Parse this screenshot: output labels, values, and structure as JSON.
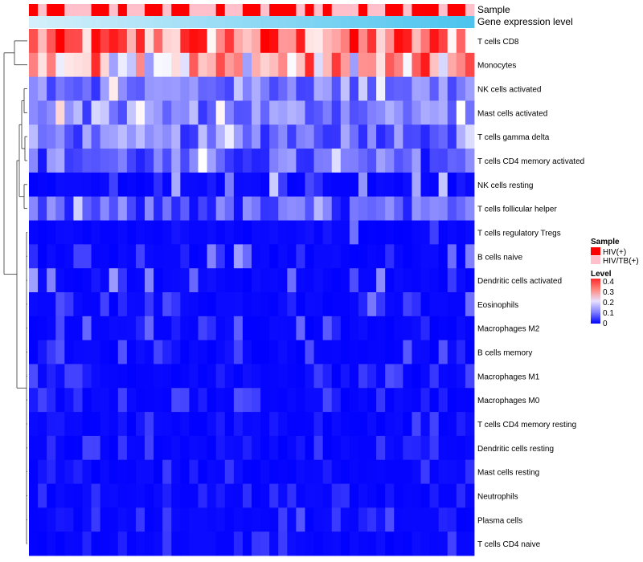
{
  "chart_data": {
    "type": "heatmap",
    "title": "",
    "columns_count": 50,
    "rows": [
      "T cells CD8",
      "Monocytes",
      "NK cells activated",
      "Mast cells activated",
      "T cells gamma delta",
      "T cells CD4 memory activated",
      "NK cells resting",
      "T cells follicular helper",
      "T cells regulatory  Tregs",
      "B cells naive",
      "Dendritic cells activated",
      "Eosinophils",
      "Macrophages M2",
      "B cells memory",
      "Macrophages M1",
      "Macrophages M0",
      "T cells CD4 memory resting",
      "Dendritic cells resting",
      "Mast cells resting",
      "Neutrophils",
      "Plasma cells",
      "T cells CD4 naive"
    ],
    "row_mean_levels": [
      0.3,
      0.22,
      0.1,
      0.1,
      0.09,
      0.07,
      0.04,
      0.06,
      0.02,
      0.03,
      0.03,
      0.02,
      0.02,
      0.01,
      0.01,
      0.01,
      0.005,
      0.005,
      0.003,
      0.002,
      0.01,
      0.005
    ],
    "annotations": {
      "sample_label": "Sample",
      "gene_label": "Gene expression level",
      "sample_pattern": "DLDDLLLDDLDLLDDLDDLLLDLLDDLDDDLDLDLLLDLLDDLDDDLDDL"
    },
    "legend_sample": {
      "title": "Sample",
      "entries": [
        {
          "label": "HIV(+)",
          "color": "#ff0000"
        },
        {
          "label": "HIV/TB(+)",
          "color": "#ffc0cb"
        }
      ]
    },
    "legend_level": {
      "title": "Level",
      "ticks": [
        "0.4",
        "0.3",
        "0.2",
        "0.1",
        "0"
      ],
      "range": [
        0,
        0.4
      ]
    },
    "colors": {
      "low": "#0000ff",
      "mid": "#ffffff",
      "high": "#ff0000",
      "gene_bar_start": "#d4effb",
      "gene_bar_end": "#4cc4ee"
    }
  }
}
